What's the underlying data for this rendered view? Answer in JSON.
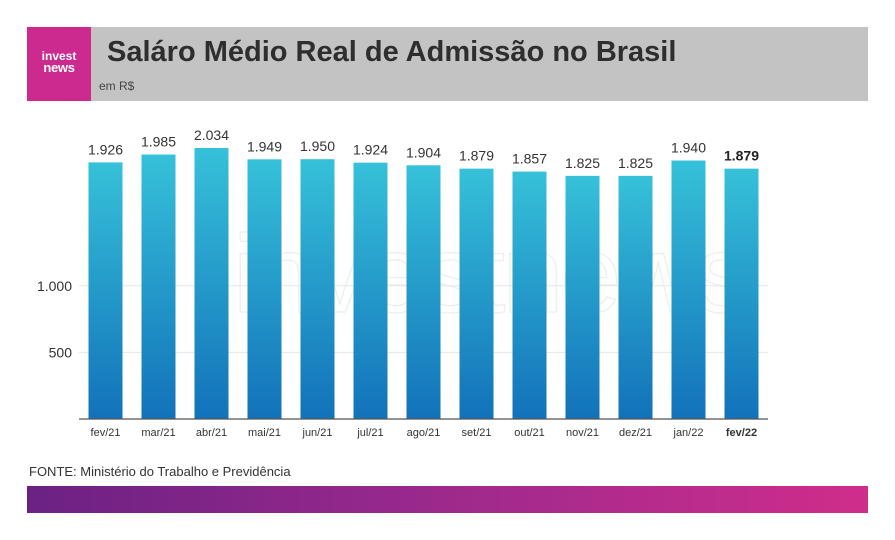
{
  "header": {
    "logo_line1": "invest",
    "logo_line2": "news",
    "title": "Saláro Médio Real de Admissão no Brasil",
    "subtitle": "em R$"
  },
  "watermark": "investnews",
  "source": "FONTE: Ministério do Trabalho e Previdência",
  "colors": {
    "bar_top": "#36c1d9",
    "bar_bottom": "#1272ba",
    "header_bg": "#c3c3c3",
    "logo_bg": "#cc2a8f",
    "gradient_start": "#6b2184",
    "gradient_end": "#d02d8b"
  },
  "chart_data": {
    "type": "bar",
    "title": "Saláro Médio Real de Admissão no Brasil",
    "ylabel": "",
    "xlabel": "",
    "categories": [
      "fev/21",
      "mar/21",
      "abr/21",
      "mai/21",
      "jun/21",
      "jul/21",
      "ago/21",
      "set/21",
      "out/21",
      "nov/21",
      "dez/21",
      "jan/22",
      "fev/22"
    ],
    "values": [
      1926,
      1985,
      2034,
      1949,
      1950,
      1924,
      1904,
      1879,
      1857,
      1825,
      1825,
      1940,
      1879
    ],
    "value_labels": [
      "1.926",
      "1.985",
      "2.034",
      "1.949",
      "1.950",
      "1.924",
      "1.904",
      "1.879",
      "1.857",
      "1.825",
      "1.825",
      "1.940",
      "1.879"
    ],
    "highlight_index": 12,
    "yticks": [
      500,
      1000
    ],
    "ytick_labels": [
      "500",
      "1.000"
    ],
    "ylim": [
      0,
      2034
    ],
    "grid": true,
    "legend": "none"
  }
}
